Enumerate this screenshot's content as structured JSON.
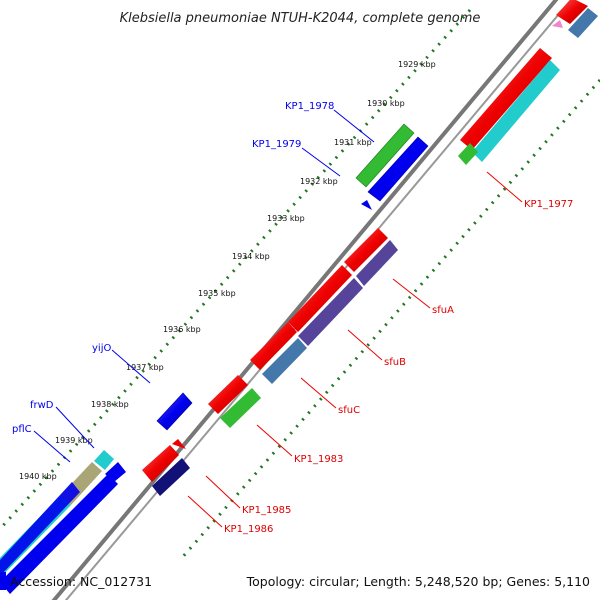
{
  "title": "Klebsiella pneumoniae NTUH-K2044, complete genome",
  "footer": {
    "accession": "Accession: NC_012731",
    "summary": "Topology: circular; Length: 5,248,520 bp; Genes: 5,110"
  },
  "colors": {
    "forward_cds": "#0000ee",
    "reverse_cds": "#ee0000",
    "cyan": "#22cccc",
    "green": "#33bb33",
    "purple": "#554499",
    "steel": "#4477aa",
    "navy": "#111177",
    "olive": "#aaa577",
    "tick_dots": "#227722",
    "backbone": "#777777"
  },
  "kbp_ticks": [
    "1929 kbp",
    "1930 kbp",
    "1931 kbp",
    "1932 kbp",
    "1933 kbp",
    "1934 kbp",
    "1935 kbp",
    "1936 kbp",
    "1937 kbp",
    "1938 kbp",
    "1939 kbp",
    "1940 kbp"
  ],
  "forward_labels": [
    "KP1_1978",
    "KP1_1979",
    "yijO",
    "frwD",
    "pflC"
  ],
  "reverse_labels": [
    "KP1_1977",
    "sfuA",
    "sfuB",
    "sfuC",
    "KP1_1983",
    "KP1_1985",
    "KP1_1986"
  ]
}
